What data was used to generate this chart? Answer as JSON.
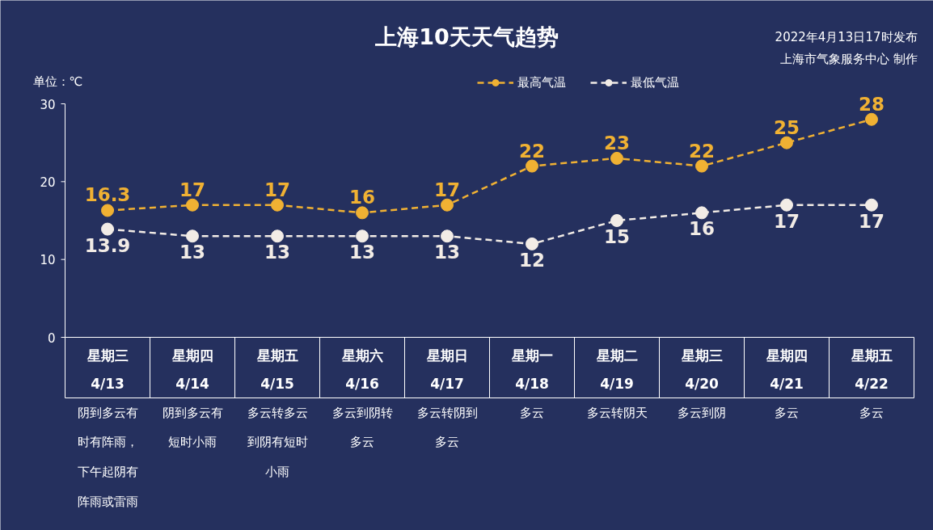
{
  "chart_data": {
    "type": "line",
    "title": "上海10天天气趋势",
    "ylabel": "单位：℃",
    "categories": [
      "星期三\n4/13",
      "星期四\n4/14",
      "星期五\n4/15",
      "星期六\n4/16",
      "星期日\n4/17",
      "星期一\n4/18",
      "星期二\n4/19",
      "星期三\n4/20",
      "星期四\n4/21",
      "星期五\n4/22"
    ],
    "series": [
      {
        "name": "最高气温",
        "color": "#f0b133",
        "values": [
          16.3,
          17,
          17,
          16,
          17,
          22,
          23,
          22,
          25,
          28
        ]
      },
      {
        "name": "最低气温",
        "color": "#f2ece6",
        "values": [
          13.9,
          13,
          13,
          13,
          13,
          12,
          15,
          16,
          17,
          17
        ]
      }
    ],
    "ylim": [
      0,
      30
    ],
    "yticks": [
      0,
      10,
      20,
      30
    ],
    "grid": false,
    "legend": "top",
    "marker": "circle",
    "line_style": "dashed",
    "data_labels": true,
    "annotations": [
      "2022年4月13日17时发布",
      "上海市气象服务中心 制作",
      "阴到多云有时有阵雨，下午起阴有阵雨或雷雨",
      "阴到多云有短时小雨",
      "多云转多云到阴有短时小雨",
      "多云到阴转多云",
      "多云转阴到多云",
      "多云",
      "多云转阴天",
      "多云到阴",
      "多云",
      "多云"
    ]
  }
}
